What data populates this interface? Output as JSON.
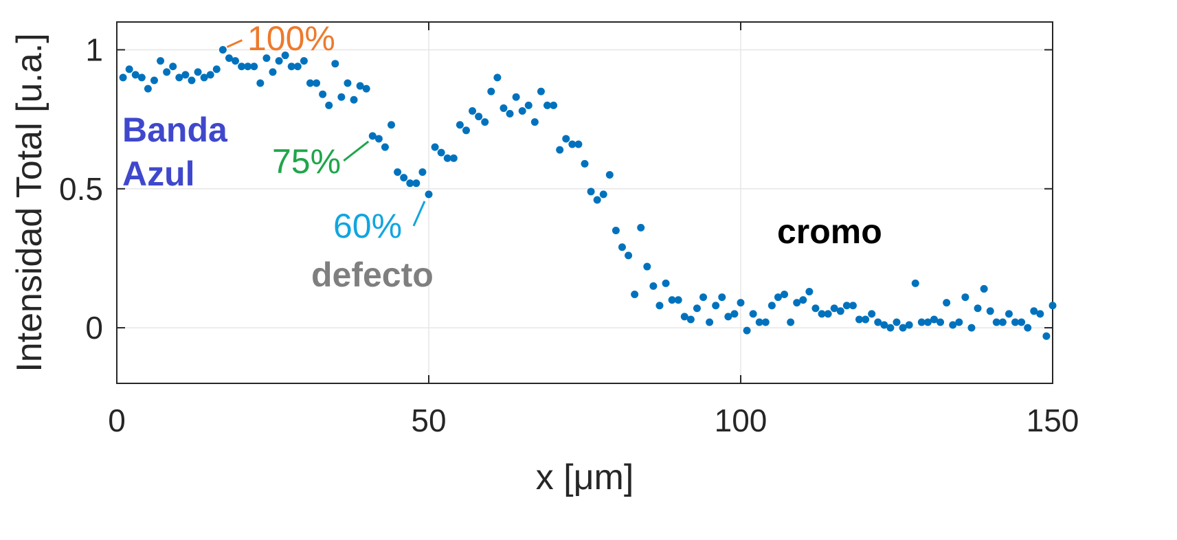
{
  "chart_data": {
    "type": "scatter",
    "xlabel": "x [μm]",
    "ylabel": "Intensidad Total [u.a.]",
    "xlim": [
      0,
      150
    ],
    "ylim": [
      -0.2,
      1.1
    ],
    "xticks": [
      0,
      50,
      100,
      150
    ],
    "xtick_labels": [
      "0",
      "50",
      "100",
      "150"
    ],
    "yticks": [
      0,
      0.5,
      1
    ],
    "ytick_labels": [
      "0",
      "0.5",
      "1"
    ],
    "grid": true,
    "marker_color": "#0072BD",
    "series": [
      {
        "x": [
          1,
          2,
          3,
          4,
          5,
          6,
          7,
          8,
          9,
          10,
          11,
          12,
          13,
          14,
          15,
          16,
          17,
          18,
          19,
          20,
          21,
          22,
          23,
          24,
          25,
          26,
          27,
          28,
          29,
          30,
          31,
          32,
          33,
          34,
          35,
          36,
          37,
          38,
          39,
          40,
          41,
          42,
          43,
          44,
          45,
          46,
          47,
          48,
          49,
          50,
          51,
          52,
          53,
          54,
          55,
          56,
          57,
          58,
          59,
          60,
          61,
          62,
          63,
          64,
          65,
          66,
          67,
          68,
          69,
          70,
          71,
          72,
          73,
          74,
          75,
          76,
          77,
          78,
          79,
          80,
          81,
          82,
          83,
          84,
          85,
          86,
          87,
          88,
          89,
          90,
          91,
          92,
          93,
          94,
          95,
          96,
          97,
          98,
          99,
          100,
          101,
          102,
          103,
          104,
          105,
          106,
          107,
          108,
          109,
          110,
          111,
          112,
          113,
          114,
          115,
          116,
          117,
          118,
          119,
          120,
          121,
          122,
          123,
          124,
          125,
          126,
          127,
          128,
          129,
          130,
          131,
          132,
          133,
          134,
          135,
          136,
          137,
          138,
          139,
          140,
          141,
          142,
          143,
          144,
          145,
          146,
          147,
          148,
          149,
          150
        ],
        "y": [
          0.9,
          0.93,
          0.91,
          0.9,
          0.86,
          0.89,
          0.96,
          0.92,
          0.94,
          0.9,
          0.91,
          0.89,
          0.92,
          0.9,
          0.91,
          0.93,
          1.0,
          0.97,
          0.96,
          0.94,
          0.94,
          0.94,
          0.88,
          0.97,
          0.92,
          0.96,
          0.98,
          0.94,
          0.94,
          0.96,
          0.88,
          0.88,
          0.84,
          0.8,
          0.95,
          0.83,
          0.88,
          0.82,
          0.87,
          0.86,
          0.69,
          0.68,
          0.65,
          0.73,
          0.56,
          0.54,
          0.52,
          0.52,
          0.56,
          0.48,
          0.65,
          0.63,
          0.61,
          0.61,
          0.73,
          0.71,
          0.78,
          0.76,
          0.74,
          0.85,
          0.9,
          0.79,
          0.77,
          0.83,
          0.78,
          0.8,
          0.74,
          0.85,
          0.8,
          0.8,
          0.64,
          0.68,
          0.66,
          0.66,
          0.59,
          0.49,
          0.46,
          0.48,
          0.55,
          0.35,
          0.29,
          0.26,
          0.12,
          0.36,
          0.22,
          0.15,
          0.08,
          0.16,
          0.1,
          0.1,
          0.04,
          0.03,
          0.07,
          0.11,
          0.02,
          0.08,
          0.11,
          0.04,
          0.05,
          0.09,
          -0.01,
          0.05,
          0.02,
          0.02,
          0.08,
          0.11,
          0.12,
          0.02,
          0.09,
          0.1,
          0.13,
          0.07,
          0.05,
          0.05,
          0.07,
          0.06,
          0.08,
          0.08,
          0.03,
          0.03,
          0.05,
          0.02,
          0.01,
          0.0,
          0.02,
          0.0,
          0.01,
          0.16,
          0.02,
          0.02,
          0.03,
          0.02,
          0.09,
          0.01,
          0.02,
          0.11,
          0.0,
          0.07,
          0.14,
          0.06,
          0.02,
          0.02,
          0.05,
          0.02,
          0.02,
          0.0,
          0.06,
          0.05,
          -0.03,
          0.08
        ]
      }
    ],
    "annotations": [
      {
        "text": "100%",
        "x": 17,
        "y": 1.0,
        "color": "#EE7A2C"
      },
      {
        "text": "75%",
        "x": 41,
        "y": 0.69,
        "color": "#1FA64A"
      },
      {
        "text": "60%",
        "x": 50,
        "y": 0.48,
        "color": "#11A5E0"
      }
    ],
    "region_labels": [
      {
        "lines": [
          "Banda",
          "Azul"
        ],
        "color": "#3F48CC"
      },
      {
        "lines": [
          "defecto"
        ],
        "color": "#7F7F7F"
      },
      {
        "lines": [
          "cromo"
        ],
        "color": "#000000"
      }
    ]
  }
}
